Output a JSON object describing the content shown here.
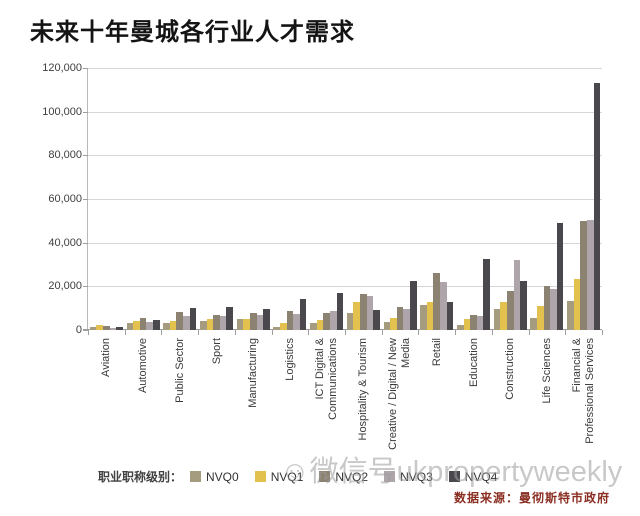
{
  "title": "未来十年曼城各行业人才需求",
  "source_note": "数据来源：曼彻斯特市政府",
  "watermark": "☺微信号ukpropertyweekly",
  "legend": {
    "label": "职业职称级别："
  },
  "chart_data": {
    "type": "bar",
    "title": "未来十年曼城各行业人才需求",
    "xlabel": "",
    "ylabel": "",
    "grid": true,
    "legend_position": "bottom",
    "y_axis": {
      "min": 0,
      "max": 120000,
      "step": 20000,
      "tick_labels": [
        "120,000",
        "100,000",
        "80,000",
        "60,000",
        "40,000",
        "20,000",
        "0"
      ]
    },
    "categories": [
      "Aviation",
      "Automotive",
      "Public Sector",
      "Sport",
      "Manufacturing",
      "Logistics",
      "ICT Digital & Communications",
      "Hospitality & Tourism",
      "Creative / Digital / New Media",
      "Retail",
      "Education",
      "Construction",
      "Life Sciences",
      "Financial & Professional Services"
    ],
    "series": [
      {
        "name": "NVQ0",
        "color": "#a59c80",
        "values": [
          1500,
          3000,
          3000,
          4000,
          5000,
          1500,
          3000,
          8000,
          3500,
          11500,
          2500,
          9500,
          5500,
          13500
        ]
      },
      {
        "name": "NVQ1",
        "color": "#e3c14e",
        "values": [
          2500,
          4000,
          4200,
          5000,
          5000,
          3000,
          4500,
          13000,
          5500,
          13000,
          5000,
          13000,
          11000,
          23500
        ]
      },
      {
        "name": "NVQ2",
        "color": "#8b8271",
        "values": [
          2000,
          5500,
          8300,
          7000,
          8000,
          8500,
          8000,
          16500,
          10500,
          26000,
          7000,
          18000,
          20000,
          50000
        ]
      },
      {
        "name": "NVQ3",
        "color": "#aea5aa",
        "values": [
          1000,
          3500,
          6400,
          6500,
          7000,
          7500,
          8800,
          15500,
          9500,
          22000,
          6500,
          32000,
          19000,
          50500
        ]
      },
      {
        "name": "NVQ4",
        "color": "#4a484c",
        "values": [
          1500,
          4500,
          10300,
          10500,
          9500,
          14000,
          17000,
          9000,
          22500,
          13000,
          32500,
          22500,
          49000,
          113000
        ]
      }
    ]
  }
}
